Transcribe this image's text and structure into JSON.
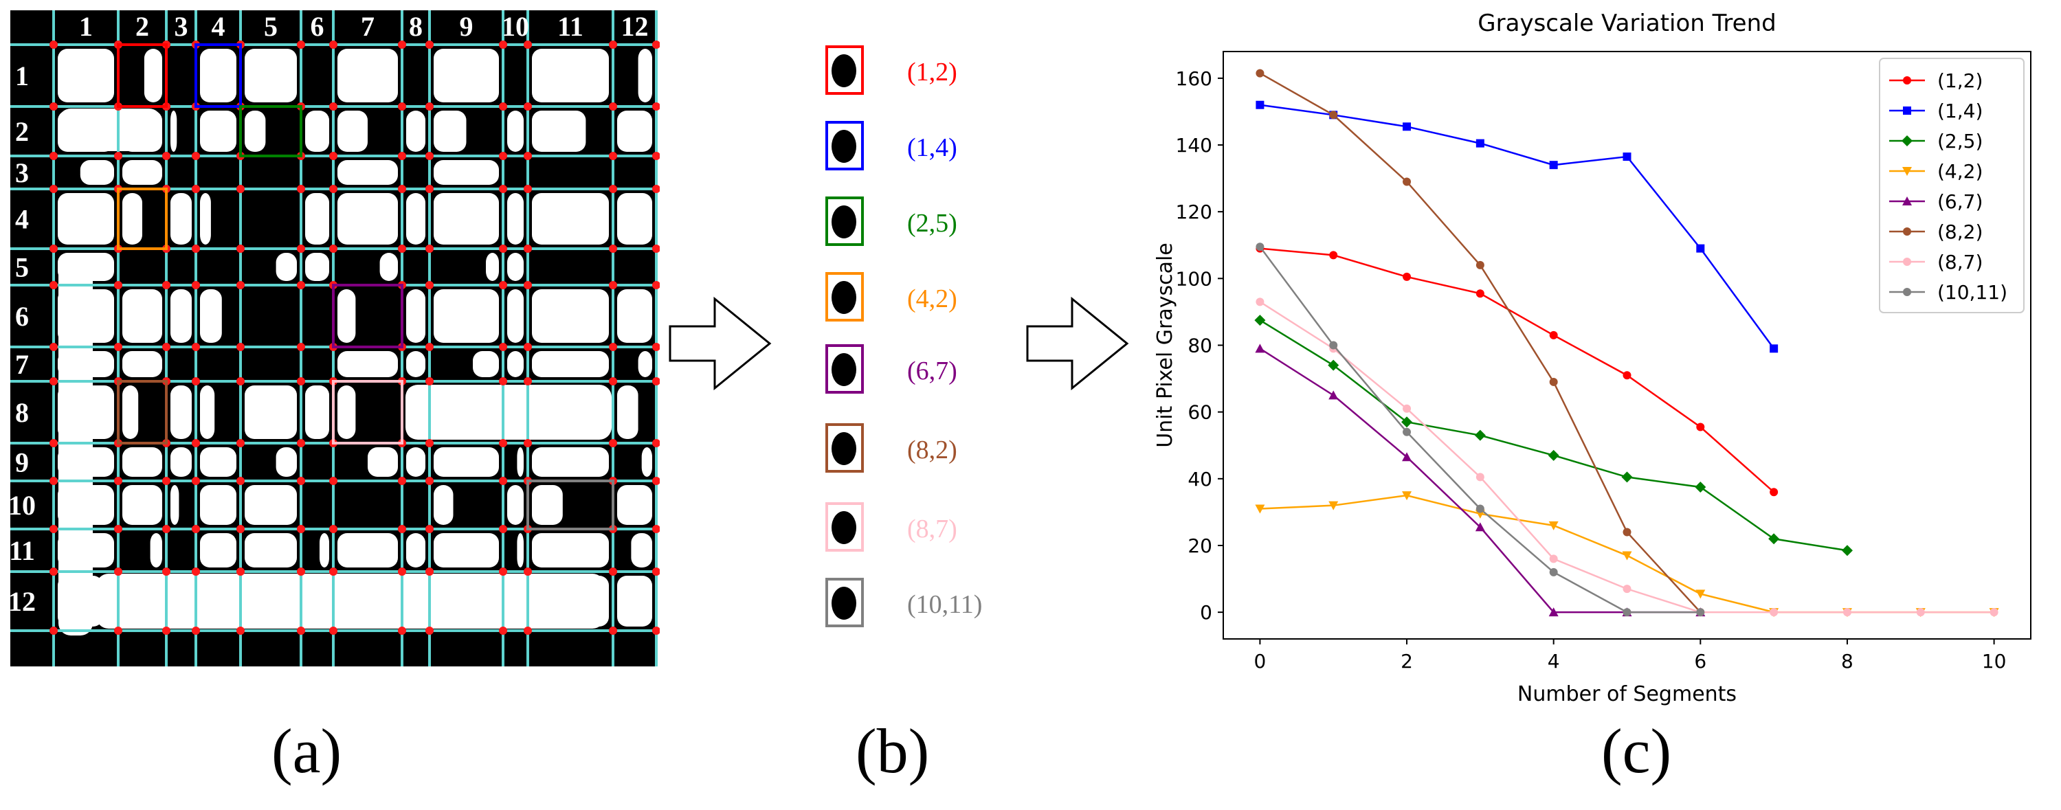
{
  "panel_a": {
    "caption": "(a)",
    "columns": [
      "1",
      "2",
      "3",
      "4",
      "5",
      "6",
      "7",
      "8",
      "9",
      "10",
      "11",
      "12"
    ],
    "rows": [
      "1",
      "2",
      "3",
      "4",
      "5",
      "6",
      "7",
      "8",
      "9",
      "10",
      "11",
      "12"
    ],
    "grid_line_color": "#5fd3cf",
    "node_color": "#ff1a1a",
    "highlighted_cells": [
      {
        "row": 1,
        "col": 2,
        "color": "#ff0000"
      },
      {
        "row": 1,
        "col": 4,
        "color": "#0000ff"
      },
      {
        "row": 2,
        "col": 5,
        "color": "#008000"
      },
      {
        "row": 4,
        "col": 2,
        "color": "#ff8c00"
      },
      {
        "row": 6,
        "col": 7,
        "color": "#800080"
      },
      {
        "row": 8,
        "col": 2,
        "color": "#a0522d"
      },
      {
        "row": 8,
        "col": 7,
        "color": "#ffc0cb"
      },
      {
        "row": 10,
        "col": 11,
        "color": "#808080"
      }
    ]
  },
  "panel_b": {
    "caption": "(b)",
    "patches": [
      {
        "label": "(1,2)",
        "color": "#ff0000"
      },
      {
        "label": "(1,4)",
        "color": "#0000ff"
      },
      {
        "label": "(2,5)",
        "color": "#008000"
      },
      {
        "label": "(4,2)",
        "color": "#ff8c00"
      },
      {
        "label": "(6,7)",
        "color": "#800080"
      },
      {
        "label": "(8,2)",
        "color": "#a0522d"
      },
      {
        "label": "(8,7)",
        "color": "#ffc0cb"
      },
      {
        "label": "(10,11)",
        "color": "#808080"
      }
    ]
  },
  "panel_c": {
    "caption": "(c)"
  },
  "chart_data": {
    "type": "line",
    "title": "Grayscale Variation Trend",
    "xlabel": "Number of Segments",
    "ylabel": "Unit Pixel Grayscale",
    "xlim": [
      -0.5,
      10.5
    ],
    "ylim": [
      -8,
      168
    ],
    "xticks": [
      0,
      2,
      4,
      6,
      8,
      10
    ],
    "yticks": [
      0,
      20,
      40,
      60,
      80,
      100,
      120,
      140,
      160
    ],
    "grid": false,
    "legend_position": "top-right",
    "series": [
      {
        "name": "(1,2)",
        "color": "#ff0000",
        "marker": "circle",
        "x": [
          0,
          1,
          2,
          3,
          4,
          5,
          6,
          7
        ],
        "values": [
          109,
          107,
          100.5,
          95.5,
          83,
          71,
          55.5,
          36
        ]
      },
      {
        "name": "(1,4)",
        "color": "#0000ff",
        "marker": "square",
        "x": [
          0,
          1,
          2,
          3,
          4,
          5,
          6,
          7
        ],
        "values": [
          152,
          149,
          145.5,
          140.5,
          134,
          136.5,
          109,
          79
        ]
      },
      {
        "name": "(2,5)",
        "color": "#008000",
        "marker": "diamond",
        "x": [
          0,
          1,
          2,
          3,
          4,
          5,
          6,
          7,
          8
        ],
        "values": [
          87.5,
          74,
          57,
          53,
          47,
          40.5,
          37.5,
          22,
          18.5
        ]
      },
      {
        "name": "(4,2)",
        "color": "#ffa500",
        "marker": "triangle-down",
        "x": [
          0,
          1,
          2,
          3,
          4,
          5,
          6,
          7,
          8,
          9,
          10
        ],
        "values": [
          31,
          32,
          35,
          29.5,
          26,
          17,
          5.5,
          0,
          0,
          0,
          0
        ]
      },
      {
        "name": "(6,7)",
        "color": "#800080",
        "marker": "triangle-up",
        "x": [
          0,
          1,
          2,
          3,
          4,
          5,
          6
        ],
        "values": [
          79,
          65,
          46.5,
          25.5,
          0,
          0,
          0
        ]
      },
      {
        "name": "(8,2)",
        "color": "#a0522d",
        "marker": "circle",
        "x": [
          0,
          1,
          2,
          3,
          4,
          5,
          6
        ],
        "values": [
          161.5,
          149,
          129,
          104,
          69,
          24,
          0
        ]
      },
      {
        "name": "(8,7)",
        "color": "#ffb6c1",
        "marker": "circle",
        "x": [
          0,
          1,
          2,
          3,
          4,
          5,
          6,
          7,
          8,
          9,
          10
        ],
        "values": [
          93,
          79,
          61,
          40.5,
          16,
          7,
          0,
          0,
          0,
          0,
          0
        ]
      },
      {
        "name": "(10,11)",
        "color": "#808080",
        "marker": "circle",
        "x": [
          0,
          1,
          2,
          3,
          4,
          5,
          6
        ],
        "values": [
          109.5,
          80,
          54,
          31,
          12,
          0,
          0
        ]
      }
    ]
  }
}
